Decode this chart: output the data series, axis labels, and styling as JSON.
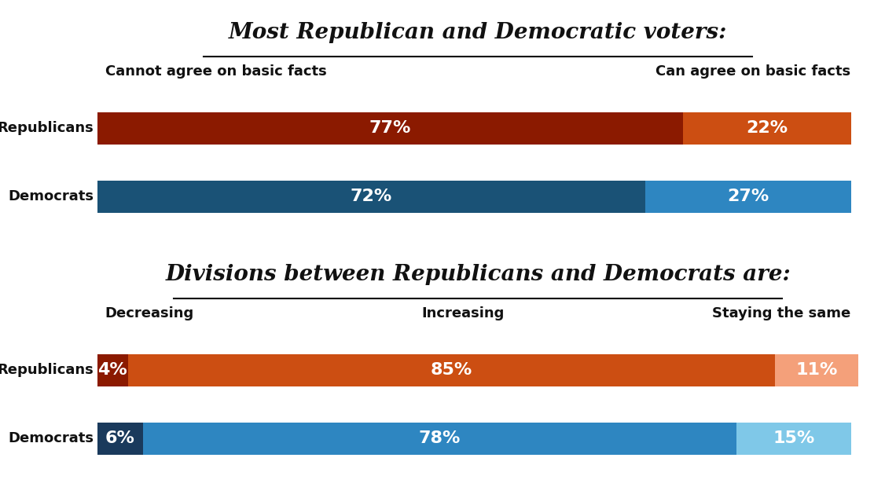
{
  "title1": "Most Republican and Democratic voters:",
  "title2": "Divisions between Republicans and Democrats are:",
  "chart1": {
    "col_labels_left": "Cannot agree on basic facts",
    "col_labels_right": "Can agree on basic facts",
    "rep_segments": [
      {
        "label": "77%",
        "value": 77,
        "color": "#8B1A00"
      },
      {
        "label": "22%",
        "value": 22,
        "color": "#CC4E12"
      }
    ],
    "dem_segments": [
      {
        "label": "72%",
        "value": 72,
        "color": "#1A5276"
      },
      {
        "label": "27%",
        "value": 27,
        "color": "#2E86C1"
      }
    ]
  },
  "chart2": {
    "col_labels": [
      "Decreasing",
      "Increasing",
      "Staying the same"
    ],
    "rep_segments": [
      {
        "label": "4%",
        "value": 4,
        "color": "#8B1A00"
      },
      {
        "label": "85%",
        "value": 85,
        "color": "#CC4E12"
      },
      {
        "label": "11%",
        "value": 11,
        "color": "#F4A07A"
      }
    ],
    "dem_segments": [
      {
        "label": "6%",
        "value": 6,
        "color": "#1A3A5C"
      },
      {
        "label": "78%",
        "value": 78,
        "color": "#2E86C1"
      },
      {
        "label": "15%",
        "value": 15,
        "color": "#7FC8E8"
      }
    ]
  },
  "background_color": "#FFFFFF",
  "bar_height": 0.52,
  "label_fontsize": 16,
  "title_fontsize": 20,
  "category_fontsize": 13,
  "col_label_fontsize": 13
}
